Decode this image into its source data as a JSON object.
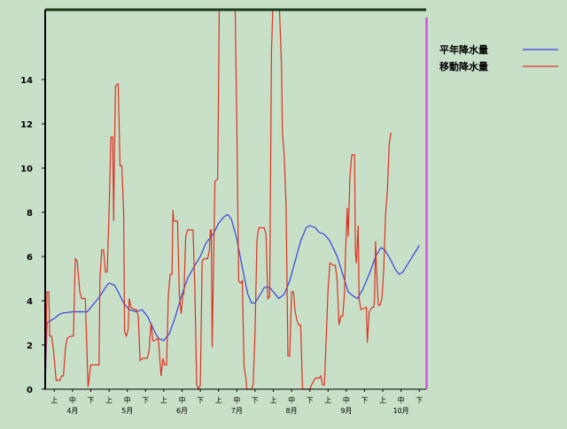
{
  "chart_data": {
    "type": "line",
    "title": "",
    "xlabel": "",
    "ylabel": "",
    "ylim": [
      0,
      17.2
    ],
    "yticks": [
      "0",
      "2",
      "4",
      "6",
      "8",
      "10",
      "12",
      "14"
    ],
    "xlim": [
      0,
      21
    ],
    "period_ticks": [
      "上",
      "中",
      "下",
      "上",
      "中",
      "下",
      "上",
      "中",
      "下",
      "上",
      "中",
      "下",
      "上",
      "中",
      "下",
      "上",
      "中",
      "下",
      "上",
      "中",
      "下"
    ],
    "month_labels": [
      "4月",
      "5月",
      "6月",
      "7月",
      "8月",
      "9月",
      "10月"
    ],
    "legend": {
      "position": "top-right",
      "entries": [
        "平年降水量",
        "移動降水量"
      ]
    },
    "grid": false,
    "colors": {
      "background": "#c8dfc8",
      "axis": "#000000",
      "top_border": "#1a3a1a",
      "current_marker": "#cc55dd"
    },
    "current_marker_x": 20.9,
    "series": [
      {
        "name": "平年降水量",
        "color": "#3344dd",
        "points": [
          [
            0,
            0
          ],
          [
            0.1,
            3.0
          ],
          [
            0.3,
            3.1
          ],
          [
            0.5,
            3.2
          ],
          [
            0.8,
            3.4
          ],
          [
            1,
            3.45
          ],
          [
            1.5,
            3.5
          ],
          [
            2,
            3.5
          ],
          [
            2.3,
            3.5
          ],
          [
            2.6,
            3.8
          ],
          [
            3,
            4.2
          ],
          [
            3.3,
            4.6
          ],
          [
            3.5,
            4.8
          ],
          [
            3.8,
            4.7
          ],
          [
            4,
            4.4
          ],
          [
            4.3,
            3.9
          ],
          [
            4.6,
            3.6
          ],
          [
            5,
            3.5
          ],
          [
            5.3,
            3.6
          ],
          [
            5.6,
            3.3
          ],
          [
            6,
            2.6
          ],
          [
            6.2,
            2.3
          ],
          [
            6.5,
            2.2
          ],
          [
            6.8,
            2.5
          ],
          [
            7.1,
            3.2
          ],
          [
            7.5,
            4.3
          ],
          [
            7.8,
            5.0
          ],
          [
            8.2,
            5.6
          ],
          [
            8.5,
            6.0
          ],
          [
            8.8,
            6.6
          ],
          [
            9.2,
            7.0
          ],
          [
            9.5,
            7.5
          ],
          [
            9.8,
            7.8
          ],
          [
            10,
            7.9
          ],
          [
            10.2,
            7.7
          ],
          [
            10.5,
            6.8
          ],
          [
            10.8,
            5.5
          ],
          [
            11.1,
            4.3
          ],
          [
            11.3,
            3.9
          ],
          [
            11.5,
            3.9
          ],
          [
            11.8,
            4.3
          ],
          [
            12,
            4.6
          ],
          [
            12.3,
            4.6
          ],
          [
            12.6,
            4.3
          ],
          [
            12.8,
            4.1
          ],
          [
            13.1,
            4.3
          ],
          [
            13.4,
            4.9
          ],
          [
            13.7,
            5.8
          ],
          [
            14,
            6.7
          ],
          [
            14.3,
            7.3
          ],
          [
            14.5,
            7.4
          ],
          [
            14.8,
            7.3
          ],
          [
            15,
            7.1
          ],
          [
            15.3,
            7.0
          ],
          [
            15.6,
            6.7
          ],
          [
            16,
            6.0
          ],
          [
            16.3,
            5.2
          ],
          [
            16.6,
            4.4
          ],
          [
            16.9,
            4.2
          ],
          [
            17.1,
            4.1
          ],
          [
            17.4,
            4.5
          ],
          [
            17.8,
            5.3
          ],
          [
            18.1,
            6.0
          ],
          [
            18.4,
            6.4
          ],
          [
            18.6,
            6.3
          ],
          [
            18.9,
            5.9
          ],
          [
            19.2,
            5.4
          ],
          [
            19.4,
            5.2
          ],
          [
            19.6,
            5.3
          ],
          [
            19.9,
            5.7
          ],
          [
            20.2,
            6.1
          ],
          [
            20.5,
            6.5
          ]
        ]
      },
      {
        "name": "移動降水量",
        "color": "#dd3322",
        "points": [
          [
            0,
            0
          ],
          [
            0.1,
            4.4
          ],
          [
            0.2,
            4.4
          ],
          [
            0.25,
            2.4
          ],
          [
            0.35,
            2.4
          ],
          [
            0.45,
            1.8
          ],
          [
            0.6,
            0.4
          ],
          [
            0.8,
            0.4
          ],
          [
            0.9,
            0.6
          ],
          [
            1.0,
            0.6
          ],
          [
            1.1,
            1.8
          ],
          [
            1.2,
            2.3
          ],
          [
            1.4,
            2.4
          ],
          [
            1.55,
            2.4
          ],
          [
            1.65,
            5.9
          ],
          [
            1.75,
            5.8
          ],
          [
            1.9,
            4.4
          ],
          [
            2.0,
            4.1
          ],
          [
            2.2,
            4.1
          ],
          [
            2.35,
            0.1
          ],
          [
            2.5,
            1.1
          ],
          [
            2.8,
            1.1
          ],
          [
            2.95,
            1.1
          ],
          [
            3.0,
            5.0
          ],
          [
            3.1,
            6.3
          ],
          [
            3.2,
            6.3
          ],
          [
            3.3,
            5.3
          ],
          [
            3.4,
            5.3
          ],
          [
            3.5,
            8.0
          ],
          [
            3.6,
            11.4
          ],
          [
            3.7,
            11.4
          ],
          [
            3.75,
            7.6
          ],
          [
            3.8,
            11.0
          ],
          [
            3.85,
            13.7
          ],
          [
            3.95,
            13.8
          ],
          [
            4.0,
            13.8
          ],
          [
            4.1,
            10.1
          ],
          [
            4.2,
            10.1
          ],
          [
            4.3,
            8.0
          ],
          [
            4.35,
            2.6
          ],
          [
            4.45,
            2.4
          ],
          [
            4.55,
            2.7
          ],
          [
            4.6,
            4.1
          ],
          [
            4.7,
            3.7
          ],
          [
            4.9,
            3.6
          ],
          [
            5.0,
            3.6
          ],
          [
            5.1,
            3.3
          ],
          [
            5.2,
            1.3
          ],
          [
            5.35,
            1.4
          ],
          [
            5.6,
            1.4
          ],
          [
            5.7,
            1.8
          ],
          [
            5.8,
            3.0
          ],
          [
            5.9,
            2.2
          ],
          [
            6.0,
            2.2
          ],
          [
            6.2,
            2.3
          ],
          [
            6.35,
            0.6
          ],
          [
            6.45,
            1.4
          ],
          [
            6.55,
            1.1
          ],
          [
            6.65,
            1.1
          ],
          [
            6.75,
            4.3
          ],
          [
            6.85,
            5.2
          ],
          [
            6.95,
            5.2
          ],
          [
            7.0,
            8.1
          ],
          [
            7.05,
            7.6
          ],
          [
            7.25,
            7.6
          ],
          [
            7.35,
            4.3
          ],
          [
            7.45,
            3.4
          ],
          [
            7.55,
            4.3
          ],
          [
            7.6,
            4.3
          ],
          [
            7.7,
            6.9
          ],
          [
            7.8,
            7.2
          ],
          [
            8.1,
            7.2
          ],
          [
            8.2,
            4.6
          ],
          [
            8.3,
            0.2
          ],
          [
            8.4,
            0
          ],
          [
            8.5,
            0.2
          ],
          [
            8.6,
            5.8
          ],
          [
            8.7,
            5.9
          ],
          [
            8.9,
            5.9
          ],
          [
            9.0,
            6.3
          ],
          [
            9.05,
            7.2
          ],
          [
            9.1,
            7.2
          ],
          [
            9.15,
            1.9
          ],
          [
            9.3,
            9.4
          ],
          [
            9.45,
            9.5
          ],
          [
            9.55,
            18.0
          ],
          [
            9.8,
            18.0
          ],
          [
            10.2,
            18.0
          ],
          [
            10.4,
            18.0
          ],
          [
            10.5,
            12.0
          ],
          [
            10.6,
            4.9
          ],
          [
            10.7,
            4.8
          ],
          [
            10.8,
            4.9
          ],
          [
            10.9,
            1.0
          ],
          [
            11.0,
            0.5
          ],
          [
            11.05,
            0
          ],
          [
            11.3,
            0
          ],
          [
            11.4,
            0.2
          ],
          [
            11.5,
            2.6
          ],
          [
            11.6,
            6.7
          ],
          [
            11.7,
            7.3
          ],
          [
            12.0,
            7.3
          ],
          [
            12.1,
            7.0
          ],
          [
            12.2,
            4.1
          ],
          [
            12.3,
            4.2
          ],
          [
            12.4,
            15.2
          ],
          [
            12.5,
            18.0
          ],
          [
            12.7,
            18.0
          ],
          [
            12.8,
            18.0
          ],
          [
            12.95,
            14.6
          ],
          [
            13.0,
            11.6
          ],
          [
            13.1,
            10.5
          ],
          [
            13.2,
            8.3
          ],
          [
            13.3,
            1.5
          ],
          [
            13.4,
            1.5
          ],
          [
            13.5,
            4.4
          ],
          [
            13.6,
            4.4
          ],
          [
            13.7,
            3.5
          ],
          [
            13.8,
            3.1
          ],
          [
            13.9,
            2.9
          ],
          [
            14.0,
            2.9
          ],
          [
            14.1,
            0
          ],
          [
            14.5,
            0
          ],
          [
            14.6,
            0.2
          ],
          [
            14.8,
            0.5
          ],
          [
            15.0,
            0.5
          ],
          [
            15.1,
            0.6
          ],
          [
            15.2,
            0.2
          ],
          [
            15.3,
            0.2
          ],
          [
            15.5,
            4.5
          ],
          [
            15.6,
            5.7
          ],
          [
            15.8,
            5.6
          ],
          [
            15.9,
            5.6
          ],
          [
            16.0,
            4.9
          ],
          [
            16.1,
            2.9
          ],
          [
            16.2,
            3.3
          ],
          [
            16.3,
            3.3
          ],
          [
            16.4,
            4.3
          ],
          [
            16.45,
            6.0
          ],
          [
            16.55,
            8.2
          ],
          [
            16.6,
            6.9
          ],
          [
            16.7,
            9.6
          ],
          [
            16.8,
            10.6
          ],
          [
            16.95,
            10.6
          ],
          [
            17.0,
            6.2
          ],
          [
            17.05,
            5.7
          ],
          [
            17.15,
            7.4
          ],
          [
            17.2,
            4.1
          ],
          [
            17.3,
            3.6
          ],
          [
            17.6,
            3.7
          ],
          [
            17.65,
            2.1
          ],
          [
            17.75,
            3.5
          ],
          [
            17.9,
            3.7
          ],
          [
            18.0,
            3.7
          ],
          [
            18.05,
            4.1
          ],
          [
            18.1,
            6.7
          ],
          [
            18.15,
            5.5
          ],
          [
            18.25,
            3.8
          ],
          [
            18.35,
            3.8
          ],
          [
            18.45,
            4.1
          ],
          [
            18.55,
            5.4
          ],
          [
            18.65,
            7.9
          ],
          [
            18.75,
            9.0
          ],
          [
            18.85,
            11.1
          ],
          [
            18.95,
            11.6
          ]
        ]
      }
    ]
  }
}
